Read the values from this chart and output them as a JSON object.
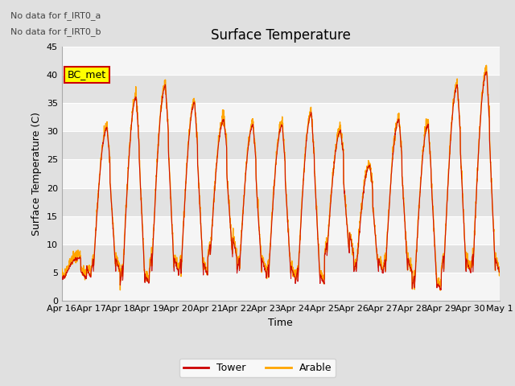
{
  "title": "Surface Temperature",
  "ylabel": "Surface Temperature (C)",
  "xlabel": "Time",
  "annotation_line1": "No data for f_IRT0_a",
  "annotation_line2": "No data for f_IRT0_b",
  "bc_met_label": "BC_met",
  "bc_met_color": "#FFFF00",
  "bc_met_border": "#CC0000",
  "tower_color": "#CC0000",
  "arable_color": "#FFA500",
  "ylim": [
    0,
    45
  ],
  "yticks": [
    0,
    5,
    10,
    15,
    20,
    25,
    30,
    35,
    40,
    45
  ],
  "xtick_labels": [
    "Apr 16",
    "Apr 17",
    "Apr 18",
    "Apr 19",
    "Apr 20",
    "Apr 21",
    "Apr 22",
    "Apr 23",
    "Apr 24",
    "Apr 25",
    "Apr 26",
    "Apr 27",
    "Apr 28",
    "Apr 29",
    "Apr 30",
    "May 1"
  ],
  "figure_bg": "#E0E0E0",
  "plot_bg_light": "#F0F0F0",
  "plot_bg_dark": "#DCDCDC",
  "title_fontsize": 12,
  "label_fontsize": 9,
  "tick_fontsize": 8,
  "annot_fontsize": 8
}
